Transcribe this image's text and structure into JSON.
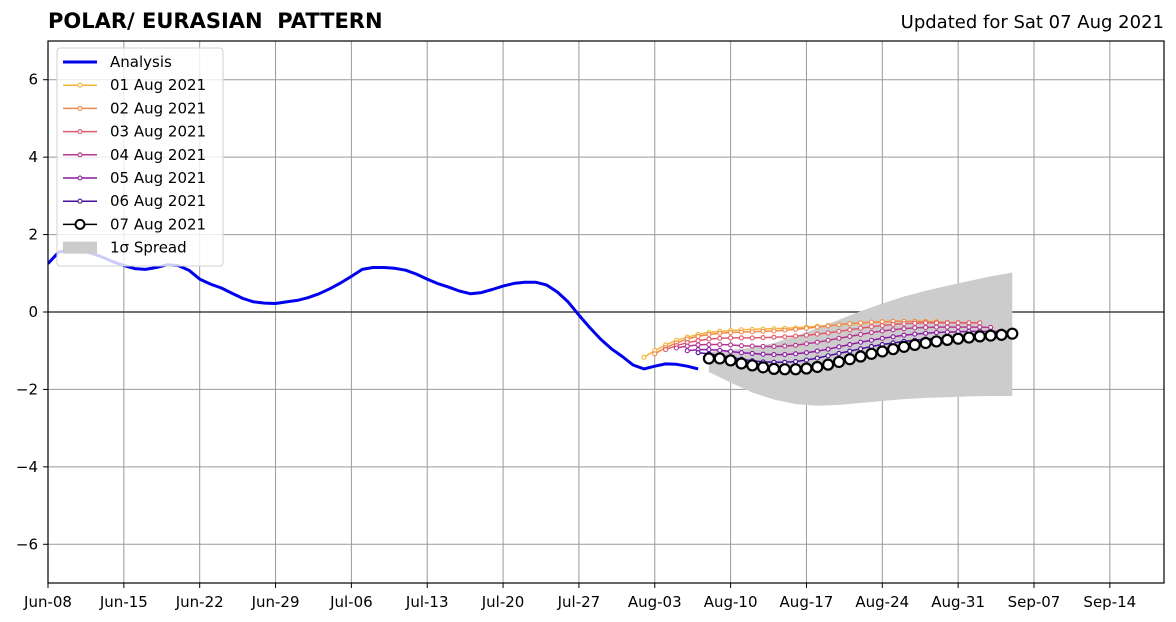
{
  "header": {
    "title": "POLAR/ EURASIAN  PATTERN",
    "updated": "Updated for Sat 07 Aug 2021"
  },
  "chart_data": {
    "type": "line",
    "title": "POLAR/ EURASIAN  PATTERN",
    "xlabel": "",
    "ylabel": "",
    "x_start": "2021-06-08",
    "xlim": [
      "2021-06-08",
      "2021-09-19"
    ],
    "ylim": [
      -7,
      7
    ],
    "grid": true,
    "legend_position": "top-left",
    "x_ticks": [
      "Jun-08",
      "Jun-15",
      "Jun-22",
      "Jun-29",
      "Jul-06",
      "Jul-13",
      "Jul-20",
      "Jul-27",
      "Aug-03",
      "Aug-10",
      "Aug-17",
      "Aug-24",
      "Aug-31",
      "Sep-07",
      "Sep-14"
    ],
    "y_ticks": [
      6,
      4,
      2,
      0,
      -2,
      -4,
      -6
    ],
    "y_tick_labels": [
      "6",
      "4",
      "2",
      "0",
      "−2",
      "−4",
      "−6"
    ],
    "series": [
      {
        "name": "Analysis",
        "color": "#0000ee",
        "style": "line",
        "x": [
          "2021-06-08",
          "2021-06-09",
          "2021-06-10",
          "2021-06-11",
          "2021-06-12",
          "2021-06-13",
          "2021-06-14",
          "2021-06-15",
          "2021-06-16",
          "2021-06-17",
          "2021-06-18",
          "2021-06-19",
          "2021-06-20",
          "2021-06-21",
          "2021-06-22",
          "2021-06-23",
          "2021-06-24",
          "2021-06-25",
          "2021-06-26",
          "2021-06-27",
          "2021-06-28",
          "2021-06-29",
          "2021-06-30",
          "2021-07-01",
          "2021-07-02",
          "2021-07-03",
          "2021-07-04",
          "2021-07-05",
          "2021-07-06",
          "2021-07-07",
          "2021-07-08",
          "2021-07-09",
          "2021-07-10",
          "2021-07-11",
          "2021-07-12",
          "2021-07-13",
          "2021-07-14",
          "2021-07-15",
          "2021-07-16",
          "2021-07-17",
          "2021-07-18",
          "2021-07-19",
          "2021-07-20",
          "2021-07-21",
          "2021-07-22",
          "2021-07-23",
          "2021-07-24",
          "2021-07-25",
          "2021-07-26",
          "2021-07-27",
          "2021-07-28",
          "2021-07-29",
          "2021-07-30",
          "2021-07-31",
          "2021-08-01",
          "2021-08-02",
          "2021-08-03",
          "2021-08-04",
          "2021-08-05",
          "2021-08-06",
          "2021-08-07"
        ],
        "values": [
          1.25,
          1.55,
          1.6,
          1.58,
          1.52,
          1.42,
          1.3,
          1.2,
          1.12,
          1.1,
          1.15,
          1.22,
          1.2,
          1.08,
          0.85,
          0.72,
          0.62,
          0.48,
          0.35,
          0.26,
          0.23,
          0.22,
          0.26,
          0.3,
          0.37,
          0.47,
          0.6,
          0.75,
          0.92,
          1.1,
          1.15,
          1.15,
          1.13,
          1.08,
          0.98,
          0.85,
          0.73,
          0.64,
          0.54,
          0.47,
          0.5,
          0.58,
          0.67,
          0.74,
          0.77,
          0.77,
          0.7,
          0.52,
          0.26,
          -0.08,
          -0.4,
          -0.7,
          -0.95,
          -1.15,
          -1.37,
          -1.47,
          -1.4,
          -1.34,
          -1.35,
          -1.4,
          -1.47
        ]
      },
      {
        "name": "01 Aug 2021",
        "color": "#f5b53a",
        "style": "forecast",
        "x": [
          "2021-08-02",
          "2021-08-03",
          "2021-08-04",
          "2021-08-05",
          "2021-08-06",
          "2021-08-07",
          "2021-08-08",
          "2021-08-09",
          "2021-08-10",
          "2021-08-11",
          "2021-08-12",
          "2021-08-13",
          "2021-08-14",
          "2021-08-15",
          "2021-08-16",
          "2021-08-17",
          "2021-08-18",
          "2021-08-19",
          "2021-08-20",
          "2021-08-21",
          "2021-08-22",
          "2021-08-23",
          "2021-08-24",
          "2021-08-25",
          "2021-08-26",
          "2021-08-27",
          "2021-08-28",
          "2021-08-29",
          "2021-08-30",
          "2021-08-31"
        ],
        "values": [
          -1.17,
          -1.0,
          -0.85,
          -0.73,
          -0.65,
          -0.58,
          -0.53,
          -0.5,
          -0.48,
          -0.46,
          -0.45,
          -0.44,
          -0.43,
          -0.42,
          -0.41,
          -0.39,
          -0.37,
          -0.35,
          -0.33,
          -0.31,
          -0.29,
          -0.27,
          -0.26,
          -0.25,
          -0.24,
          -0.24,
          -0.24,
          -0.25,
          -0.27,
          -0.28
        ]
      },
      {
        "name": "02 Aug 2021",
        "color": "#f08a4b",
        "style": "forecast",
        "x": [
          "2021-08-03",
          "2021-08-04",
          "2021-08-05",
          "2021-08-06",
          "2021-08-07",
          "2021-08-08",
          "2021-08-09",
          "2021-08-10",
          "2021-08-11",
          "2021-08-12",
          "2021-08-13",
          "2021-08-14",
          "2021-08-15",
          "2021-08-16",
          "2021-08-17",
          "2021-08-18",
          "2021-08-19",
          "2021-08-20",
          "2021-08-21",
          "2021-08-22",
          "2021-08-23",
          "2021-08-24",
          "2021-08-25",
          "2021-08-26",
          "2021-08-27",
          "2021-08-28",
          "2021-08-29",
          "2021-08-30",
          "2021-08-31",
          "2021-09-01"
        ],
        "values": [
          -1.08,
          -0.92,
          -0.8,
          -0.7,
          -0.63,
          -0.58,
          -0.55,
          -0.53,
          -0.52,
          -0.51,
          -0.5,
          -0.49,
          -0.47,
          -0.45,
          -0.42,
          -0.39,
          -0.36,
          -0.33,
          -0.3,
          -0.28,
          -0.26,
          -0.25,
          -0.24,
          -0.24,
          -0.24,
          -0.25,
          -0.26,
          -0.27,
          -0.28,
          -0.29
        ]
      },
      {
        "name": "03 Aug 2021",
        "color": "#e0596e",
        "style": "forecast",
        "x": [
          "2021-08-04",
          "2021-08-05",
          "2021-08-06",
          "2021-08-07",
          "2021-08-08",
          "2021-08-09",
          "2021-08-10",
          "2021-08-11",
          "2021-08-12",
          "2021-08-13",
          "2021-08-14",
          "2021-08-15",
          "2021-08-16",
          "2021-08-17",
          "2021-08-18",
          "2021-08-19",
          "2021-08-20",
          "2021-08-21",
          "2021-08-22",
          "2021-08-23",
          "2021-08-24",
          "2021-08-25",
          "2021-08-26",
          "2021-08-27",
          "2021-08-28",
          "2021-08-29",
          "2021-08-30",
          "2021-08-31",
          "2021-09-01",
          "2021-09-02"
        ],
        "values": [
          -0.97,
          -0.87,
          -0.79,
          -0.74,
          -0.7,
          -0.68,
          -0.67,
          -0.67,
          -0.67,
          -0.66,
          -0.65,
          -0.64,
          -0.62,
          -0.6,
          -0.57,
          -0.54,
          -0.5,
          -0.46,
          -0.42,
          -0.38,
          -0.35,
          -0.32,
          -0.3,
          -0.29,
          -0.28,
          -0.28,
          -0.28,
          -0.28,
          -0.28,
          -0.28
        ]
      },
      {
        "name": "04 Aug 2021",
        "color": "#b5388f",
        "style": "forecast",
        "x": [
          "2021-08-05",
          "2021-08-06",
          "2021-08-07",
          "2021-08-08",
          "2021-08-09",
          "2021-08-10",
          "2021-08-11",
          "2021-08-12",
          "2021-08-13",
          "2021-08-14",
          "2021-08-15",
          "2021-08-16",
          "2021-08-17",
          "2021-08-18",
          "2021-08-19",
          "2021-08-20",
          "2021-08-21",
          "2021-08-22",
          "2021-08-23",
          "2021-08-24",
          "2021-08-25",
          "2021-08-26",
          "2021-08-27",
          "2021-08-28",
          "2021-08-29",
          "2021-08-30",
          "2021-08-31",
          "2021-09-01",
          "2021-09-02",
          "2021-09-03"
        ],
        "values": [
          -0.93,
          -0.88,
          -0.85,
          -0.84,
          -0.84,
          -0.85,
          -0.87,
          -0.88,
          -0.89,
          -0.89,
          -0.88,
          -0.86,
          -0.82,
          -0.78,
          -0.73,
          -0.68,
          -0.63,
          -0.58,
          -0.53,
          -0.49,
          -0.46,
          -0.43,
          -0.41,
          -0.4,
          -0.39,
          -0.39,
          -0.39,
          -0.39,
          -0.39,
          -0.4
        ]
      },
      {
        "name": "05 Aug 2021",
        "color": "#8b1aa5",
        "style": "forecast",
        "x": [
          "2021-08-06",
          "2021-08-07",
          "2021-08-08",
          "2021-08-09",
          "2021-08-10",
          "2021-08-11",
          "2021-08-12",
          "2021-08-13",
          "2021-08-14",
          "2021-08-15",
          "2021-08-16",
          "2021-08-17",
          "2021-08-18",
          "2021-08-19",
          "2021-08-20",
          "2021-08-21",
          "2021-08-22",
          "2021-08-23",
          "2021-08-24",
          "2021-08-25",
          "2021-08-26",
          "2021-08-27",
          "2021-08-28",
          "2021-08-29",
          "2021-08-30",
          "2021-08-31",
          "2021-09-01",
          "2021-09-02",
          "2021-09-03",
          "2021-09-04"
        ],
        "values": [
          -1.0,
          -0.97,
          -0.97,
          -0.99,
          -1.02,
          -1.05,
          -1.07,
          -1.09,
          -1.1,
          -1.1,
          -1.08,
          -1.05,
          -1.01,
          -0.96,
          -0.9,
          -0.84,
          -0.78,
          -0.73,
          -0.68,
          -0.64,
          -0.6,
          -0.57,
          -0.55,
          -0.53,
          -0.52,
          -0.51,
          -0.5,
          -0.5,
          -0.5,
          -0.5
        ]
      },
      {
        "name": "06 Aug 2021",
        "color": "#4a0f9b",
        "style": "forecast",
        "x": [
          "2021-08-07",
          "2021-08-08",
          "2021-08-09",
          "2021-08-10",
          "2021-08-11",
          "2021-08-12",
          "2021-08-13",
          "2021-08-14",
          "2021-08-15",
          "2021-08-16",
          "2021-08-17",
          "2021-08-18",
          "2021-08-19",
          "2021-08-20",
          "2021-08-21",
          "2021-08-22",
          "2021-08-23",
          "2021-08-24",
          "2021-08-25",
          "2021-08-26",
          "2021-08-27",
          "2021-08-28",
          "2021-08-29",
          "2021-08-30",
          "2021-08-31",
          "2021-09-01",
          "2021-09-02",
          "2021-09-03",
          "2021-09-04",
          "2021-09-05"
        ],
        "values": [
          -1.05,
          -1.08,
          -1.12,
          -1.17,
          -1.22,
          -1.26,
          -1.29,
          -1.3,
          -1.3,
          -1.28,
          -1.24,
          -1.19,
          -1.13,
          -1.07,
          -1.01,
          -0.95,
          -0.89,
          -0.84,
          -0.8,
          -0.76,
          -0.73,
          -0.7,
          -0.68,
          -0.66,
          -0.64,
          -0.62,
          -0.61,
          -0.6,
          -0.59,
          -0.58
        ]
      },
      {
        "name": "07 Aug 2021",
        "color": "#000000",
        "style": "circles",
        "x": [
          "2021-08-08",
          "2021-08-09",
          "2021-08-10",
          "2021-08-11",
          "2021-08-12",
          "2021-08-13",
          "2021-08-14",
          "2021-08-15",
          "2021-08-16",
          "2021-08-17",
          "2021-08-18",
          "2021-08-19",
          "2021-08-20",
          "2021-08-21",
          "2021-08-22",
          "2021-08-23",
          "2021-08-24",
          "2021-08-25",
          "2021-08-26",
          "2021-08-27",
          "2021-08-28",
          "2021-08-29",
          "2021-08-30",
          "2021-08-31",
          "2021-09-01",
          "2021-09-02",
          "2021-09-03",
          "2021-09-04",
          "2021-09-05"
        ],
        "values": [
          -1.2,
          -1.2,
          -1.25,
          -1.33,
          -1.38,
          -1.43,
          -1.47,
          -1.48,
          -1.48,
          -1.46,
          -1.42,
          -1.36,
          -1.29,
          -1.22,
          -1.15,
          -1.08,
          -1.02,
          -0.96,
          -0.9,
          -0.85,
          -0.8,
          -0.76,
          -0.72,
          -0.69,
          -0.66,
          -0.63,
          -0.61,
          -0.59,
          -0.56
        ]
      }
    ],
    "spread": {
      "name": "1σ Spread",
      "color": "#cccccc",
      "x": [
        "2021-08-08",
        "2021-08-10",
        "2021-08-12",
        "2021-08-14",
        "2021-08-16",
        "2021-08-18",
        "2021-08-20",
        "2021-08-22",
        "2021-08-24",
        "2021-08-26",
        "2021-08-28",
        "2021-08-30",
        "2021-09-01",
        "2021-09-03",
        "2021-09-05"
      ],
      "upper": [
        -1.03,
        -0.98,
        -0.92,
        -0.8,
        -0.62,
        -0.42,
        -0.2,
        0.02,
        0.22,
        0.4,
        0.55,
        0.68,
        0.8,
        0.92,
        1.02
      ],
      "lower": [
        -1.55,
        -1.82,
        -2.08,
        -2.26,
        -2.38,
        -2.42,
        -2.4,
        -2.35,
        -2.3,
        -2.25,
        -2.22,
        -2.2,
        -2.18,
        -2.17,
        -2.17
      ]
    },
    "legend": [
      {
        "label": "Analysis",
        "color": "#0000ee",
        "kind": "line"
      },
      {
        "label": "01 Aug 2021",
        "color": "#f5b53a",
        "kind": "marker-line"
      },
      {
        "label": "02 Aug 2021",
        "color": "#f08a4b",
        "kind": "marker-line"
      },
      {
        "label": "03 Aug 2021",
        "color": "#e0596e",
        "kind": "marker-line"
      },
      {
        "label": "04 Aug 2021",
        "color": "#b5388f",
        "kind": "marker-line"
      },
      {
        "label": "05 Aug 2021",
        "color": "#8b1aa5",
        "kind": "marker-line"
      },
      {
        "label": "06 Aug 2021",
        "color": "#4a0f9b",
        "kind": "marker-line"
      },
      {
        "label": "07 Aug 2021",
        "color": "#000000",
        "kind": "circle-line"
      },
      {
        "label": "1σ Spread",
        "color": "#cccccc",
        "kind": "patch"
      }
    ]
  }
}
